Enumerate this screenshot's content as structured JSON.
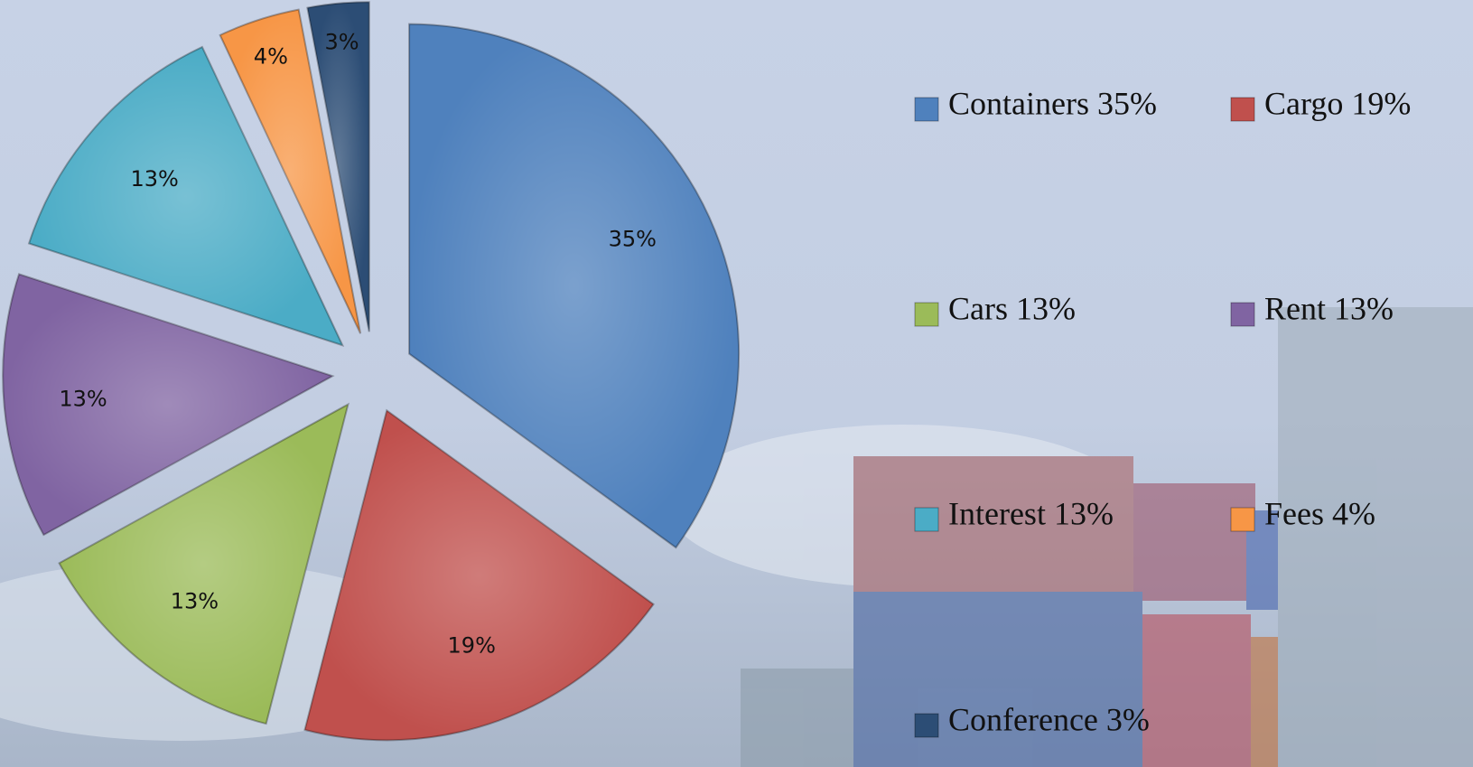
{
  "chart_data": {
    "type": "pie",
    "categories": [
      "Containers 35%",
      "Cargo 19%",
      "Cars 13%",
      "Rent 13%",
      "Interest 13%",
      "Fees 4%",
      "Conference 3%"
    ],
    "values": [
      35,
      19,
      13,
      13,
      13,
      4,
      3
    ],
    "value_labels": [
      "35%",
      "19%",
      "13%",
      "13%",
      "13%",
      "4%",
      "3%"
    ],
    "colors": [
      "#4f81bd",
      "#c0504d",
      "#9bbb59",
      "#8064a2",
      "#4bacc6",
      "#f79646",
      "#2c4d75"
    ],
    "legend": "right"
  }
}
